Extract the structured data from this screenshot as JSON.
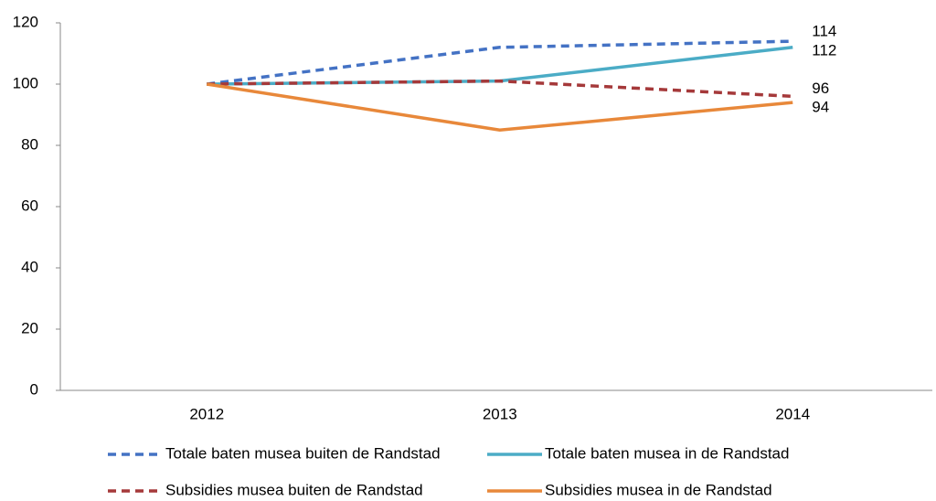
{
  "chart_data": {
    "type": "line",
    "categories": [
      "2012",
      "2013",
      "2014"
    ],
    "series": [
      {
        "name": "Totale baten musea buiten de Randstad",
        "color": "#4472c4",
        "dashed": true,
        "values": [
          100,
          112,
          114
        ]
      },
      {
        "name": "Totale baten musea in de Randstad",
        "color": "#4bacc6",
        "dashed": false,
        "values": [
          100,
          101,
          112
        ]
      },
      {
        "name": "Subsidies musea buiten de Randstad",
        "color": "#a5393a",
        "dashed": true,
        "values": [
          100,
          101,
          96
        ]
      },
      {
        "name": "Subsidies musea in de Randstad",
        "color": "#e8883a",
        "dashed": false,
        "values": [
          100,
          85,
          94
        ]
      }
    ],
    "ylim": [
      0,
      120
    ],
    "yticks": [
      0,
      20,
      40,
      60,
      80,
      100,
      120
    ],
    "grid": false
  }
}
